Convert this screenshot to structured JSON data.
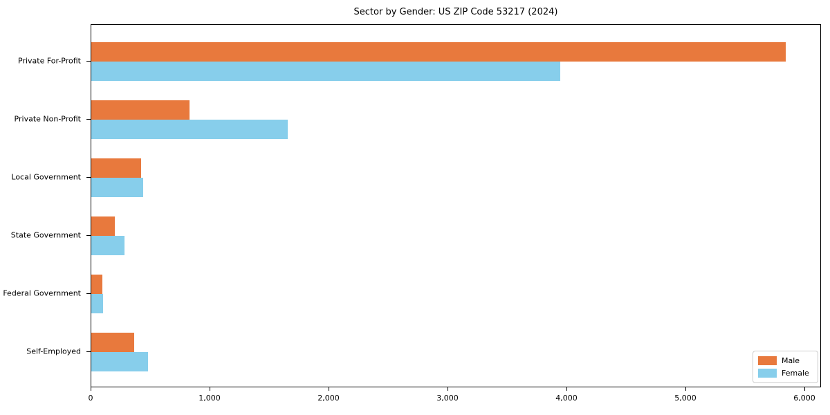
{
  "title": "Sector by Gender: US ZIP Code 53217 (2024)",
  "chart_data": {
    "type": "bar",
    "orientation": "horizontal",
    "title": "Sector by Gender: US ZIP Code 53217 (2024)",
    "categories": [
      "Private For-Profit",
      "Private Non-Profit",
      "Local Government",
      "State Government",
      "Federal Government",
      "Self-Employed"
    ],
    "series": [
      {
        "name": "Male",
        "color": "#e8793d",
        "values": [
          5840,
          825,
          420,
          195,
          95,
          360
        ]
      },
      {
        "name": "Female",
        "color": "#87ceeb",
        "values": [
          3940,
          1650,
          435,
          280,
          100,
          475
        ]
      }
    ],
    "xlabel": "",
    "ylabel": "",
    "xlim": [
      0,
      6140
    ],
    "xticks": [
      0,
      1000,
      2000,
      3000,
      4000,
      5000,
      6000
    ],
    "xtick_labels": [
      "0",
      "1,000",
      "2,000",
      "3,000",
      "4,000",
      "5,000",
      "6,000"
    ],
    "grid": false,
    "legend": {
      "position": "lower right",
      "entries": [
        "Male",
        "Female"
      ]
    }
  }
}
